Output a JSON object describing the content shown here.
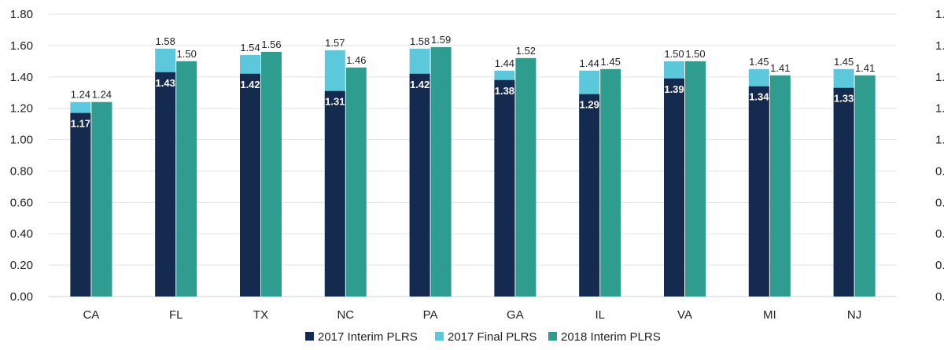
{
  "chart_data": {
    "type": "bar",
    "title": "",
    "xlabel": "",
    "ylabel": "",
    "ylim": [
      0,
      1.8
    ],
    "yticks": [
      "0.00",
      "0.20",
      "0.40",
      "0.60",
      "0.80",
      "1.00",
      "1.20",
      "1.40",
      "1.60",
      "1.80"
    ],
    "grid": true,
    "legend_position": "bottom",
    "categories": [
      "CA",
      "FL",
      "TX",
      "NC",
      "PA",
      "GA",
      "IL",
      "VA",
      "MI",
      "NJ"
    ],
    "series": [
      {
        "name": "2017 Interim PLRS",
        "color": "#152a4f",
        "values": [
          1.17,
          1.43,
          1.42,
          1.31,
          1.42,
          1.38,
          1.29,
          1.39,
          1.34,
          1.33
        ],
        "labels": [
          "1.17",
          "1.43",
          "1.42",
          "1.31",
          "1.42",
          "1.38",
          "1.29",
          "1.39",
          "1.34",
          "1.33"
        ]
      },
      {
        "name": "2017 Final PLRS",
        "color": "#5bc8dc",
        "values": [
          1.24,
          1.58,
          1.54,
          1.57,
          1.58,
          1.44,
          1.44,
          1.5,
          1.45,
          1.45
        ],
        "labels": [
          "1.24",
          "1.58",
          "1.54",
          "1.57",
          "1.58",
          "1.44",
          "1.44",
          "1.50",
          "1.45",
          "1.45"
        ]
      },
      {
        "name": "2018 Interim PLRS",
        "color": "#2e9c8f",
        "values": [
          1.24,
          1.5,
          1.56,
          1.46,
          1.59,
          1.52,
          1.45,
          1.5,
          1.41,
          1.41
        ],
        "labels": [
          "1.24",
          "1.50",
          "1.56",
          "1.46",
          "1.59",
          "1.52",
          "1.45",
          "1.50",
          "1.41",
          "1.41"
        ]
      }
    ]
  }
}
